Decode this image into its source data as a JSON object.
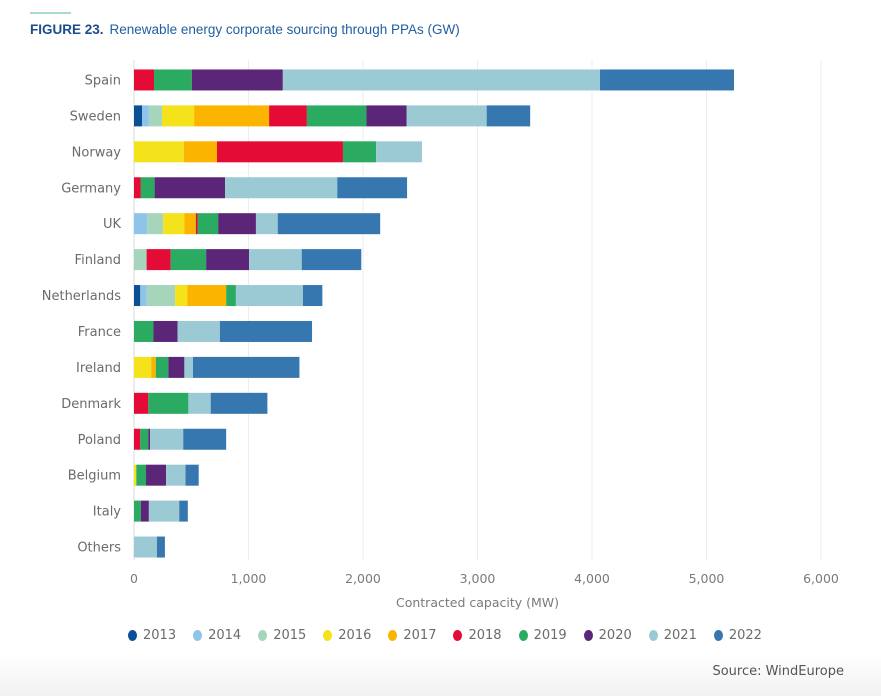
{
  "figure": {
    "number_label": "FIGURE 23.",
    "title": "Renewable energy corporate sourcing through PPAs (GW)",
    "source": "Source: WindEurope"
  },
  "chart_data": {
    "type": "bar",
    "orientation": "horizontal",
    "stacked": true,
    "title": "Renewable energy corporate sourcing through PPAs (GW)",
    "xlabel": "Contracted capacity (MW)",
    "ylabel": "",
    "xlim": [
      0,
      6000
    ],
    "xticks": [
      0,
      1000,
      2000,
      3000,
      4000,
      5000,
      6000
    ],
    "xtick_labels": [
      "0",
      "1,000",
      "2,000",
      "3,000",
      "4,000",
      "5,000",
      "6,000"
    ],
    "grid": "vertical",
    "legend_position": "bottom",
    "categories": [
      "Spain",
      "Sweden",
      "Norway",
      "Germany",
      "UK",
      "Finland",
      "Netherlands",
      "France",
      "Ireland",
      "Denmark",
      "Poland",
      "Belgium",
      "Italy",
      "Others"
    ],
    "series": [
      {
        "name": "2013",
        "color": "#0b4f95",
        "values": [
          0,
          70,
          0,
          0,
          0,
          0,
          55,
          0,
          0,
          0,
          0,
          0,
          0,
          0
        ]
      },
      {
        "name": "2014",
        "color": "#8ec3ea",
        "values": [
          0,
          60,
          0,
          0,
          115,
          0,
          55,
          0,
          0,
          0,
          0,
          0,
          0,
          0
        ]
      },
      {
        "name": "2015",
        "color": "#a6d5bc",
        "values": [
          0,
          115,
          0,
          0,
          140,
          110,
          250,
          0,
          0,
          0,
          0,
          0,
          0,
          0
        ]
      },
      {
        "name": "2016",
        "color": "#f4e21a",
        "values": [
          0,
          280,
          435,
          0,
          185,
          0,
          105,
          0,
          150,
          0,
          0,
          20,
          0,
          0
        ]
      },
      {
        "name": "2017",
        "color": "#fbb400",
        "values": [
          0,
          655,
          290,
          0,
          100,
          0,
          340,
          0,
          40,
          0,
          0,
          0,
          0,
          0
        ]
      },
      {
        "name": "2018",
        "color": "#e40b37",
        "values": [
          175,
          330,
          1100,
          60,
          15,
          210,
          0,
          0,
          0,
          125,
          55,
          0,
          0,
          0
        ]
      },
      {
        "name": "2019",
        "color": "#2aab61",
        "values": [
          330,
          520,
          290,
          120,
          180,
          310,
          85,
          170,
          110,
          350,
          70,
          85,
          60,
          0
        ]
      },
      {
        "name": "2020",
        "color": "#5c2678",
        "values": [
          795,
          350,
          0,
          615,
          330,
          375,
          0,
          210,
          140,
          0,
          15,
          175,
          70,
          0
        ]
      },
      {
        "name": "2021",
        "color": "#9ccad4",
        "values": [
          2770,
          700,
          400,
          980,
          190,
          460,
          585,
          370,
          75,
          195,
          290,
          170,
          265,
          200
        ]
      },
      {
        "name": "2022",
        "color": "#3577ae",
        "values": [
          1170,
          380,
          0,
          610,
          895,
          520,
          170,
          805,
          930,
          495,
          375,
          115,
          75,
          70
        ]
      }
    ]
  }
}
